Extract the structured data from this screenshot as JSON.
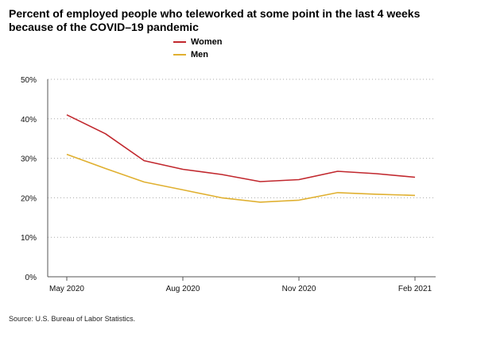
{
  "title": "Percent of employed people who teleworked at some point in the last 4 weeks because of the COVID–19 pandemic",
  "source": "Source: U.S. Bureau of Labor Statistics.",
  "colors": {
    "women": "#c1272d",
    "men": "#e0b030",
    "grid": "#aaaaaa",
    "axis": "#555555"
  },
  "chart_data": {
    "type": "line",
    "title": "Percent of employed people who teleworked at some point in the last 4 weeks because of the COVID–19 pandemic",
    "x": [
      "May 2020",
      "Jun 2020",
      "Jul 2020",
      "Aug 2020",
      "Sep 2020",
      "Oct 2020",
      "Nov 2020",
      "Dec 2020",
      "Jan 2021",
      "Feb 2021"
    ],
    "x_tick_labels": [
      "May 2020",
      "Aug 2020",
      "Nov 2020",
      "Feb 2021"
    ],
    "y_tick_labels": [
      "0%",
      "10%",
      "20%",
      "30%",
      "40%",
      "50%"
    ],
    "ylim": [
      0,
      50
    ],
    "grid": true,
    "legend_position": "top-center",
    "series": [
      {
        "name": "Women",
        "color": "#c1272d",
        "values": [
          41.0,
          36.2,
          29.4,
          27.2,
          25.9,
          24.1,
          24.6,
          26.7,
          26.1,
          25.2
        ]
      },
      {
        "name": "Men",
        "color": "#e0b030",
        "values": [
          31.0,
          27.4,
          24.0,
          22.0,
          20.0,
          18.9,
          19.4,
          21.3,
          20.9,
          20.6
        ]
      }
    ]
  }
}
